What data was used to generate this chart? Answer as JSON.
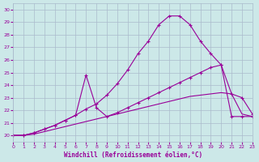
{
  "xlabel": "Windchill (Refroidissement éolien,°C)",
  "xlim": [
    0,
    23
  ],
  "ylim": [
    19.5,
    30.5
  ],
  "yticks": [
    20,
    21,
    22,
    23,
    24,
    25,
    26,
    27,
    28,
    29,
    30
  ],
  "xticks": [
    0,
    1,
    2,
    3,
    4,
    5,
    6,
    7,
    8,
    9,
    10,
    11,
    12,
    13,
    14,
    15,
    16,
    17,
    18,
    19,
    20,
    21,
    22,
    23
  ],
  "bg_color": "#cce8e8",
  "grid_color": "#aabbcc",
  "line_color": "#990099",
  "line1_x": [
    0,
    1,
    2,
    3,
    4,
    5,
    6,
    7,
    8,
    9,
    10,
    11,
    12,
    13,
    14,
    15,
    16,
    17,
    18,
    19,
    20,
    21,
    22,
    23
  ],
  "line1_y": [
    20.0,
    20.0,
    20.2,
    20.5,
    20.8,
    21.2,
    21.6,
    22.1,
    22.5,
    23.2,
    24.1,
    25.2,
    26.5,
    27.5,
    28.8,
    29.5,
    29.5,
    28.8,
    27.5,
    26.5,
    25.6,
    21.5,
    21.5,
    21.5
  ],
  "line2_x": [
    0,
    1,
    2,
    3,
    4,
    5,
    6,
    7,
    8,
    9,
    10,
    11,
    12,
    13,
    14,
    15,
    16,
    17,
    18,
    19,
    20,
    21,
    22,
    23
  ],
  "line2_y": [
    20.0,
    20.0,
    20.2,
    20.5,
    20.8,
    21.2,
    21.6,
    24.8,
    22.2,
    21.5,
    21.8,
    22.2,
    22.6,
    23.0,
    23.4,
    23.8,
    24.2,
    24.6,
    25.0,
    25.4,
    25.6,
    23.3,
    23.0,
    21.7
  ],
  "line3_x": [
    0,
    1,
    2,
    3,
    4,
    5,
    6,
    7,
    8,
    9,
    10,
    11,
    12,
    13,
    14,
    15,
    16,
    17,
    18,
    19,
    20,
    21,
    22,
    23
  ],
  "line3_y": [
    20.0,
    20.0,
    20.1,
    20.3,
    20.5,
    20.7,
    20.9,
    21.1,
    21.3,
    21.5,
    21.7,
    21.9,
    22.1,
    22.3,
    22.5,
    22.7,
    22.9,
    23.1,
    23.2,
    23.3,
    23.4,
    23.3,
    21.7,
    21.5
  ]
}
